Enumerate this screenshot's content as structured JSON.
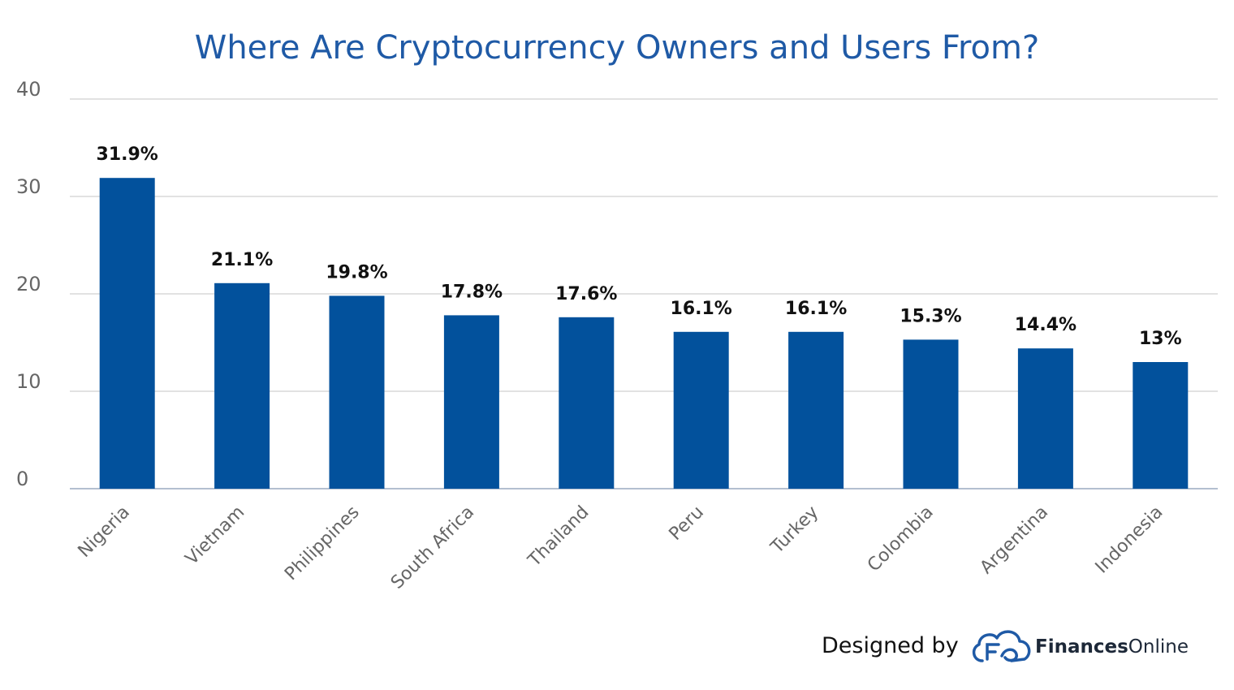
{
  "chart_data": {
    "type": "bar",
    "title": "Where Are Cryptocurrency Owners and Users From?",
    "categories": [
      "Nigeria",
      "Vietnam",
      "Philippines",
      "South Africa",
      "Thailand",
      "Peru",
      "Turkey",
      "Colombia",
      "Argentina",
      "Indonesia"
    ],
    "values": [
      31.9,
      21.1,
      19.8,
      17.8,
      17.6,
      16.1,
      16.1,
      15.3,
      14.4,
      13
    ],
    "data_labels": [
      "31.9%",
      "21.1%",
      "19.8%",
      "17.8%",
      "17.6%",
      "16.1%",
      "16.1%",
      "15.3%",
      "14.4%",
      "13%"
    ],
    "y_ticks": [
      "0",
      "10",
      "20",
      "30",
      "40"
    ],
    "ylim": [
      0,
      40
    ],
    "xlabel": "",
    "ylabel": "",
    "grid": true,
    "bar_color": "#02519c"
  },
  "credit": {
    "designed_by": "Designed by",
    "brand_bold": "Finances",
    "brand_light": "Online",
    "logo_icon": "financesonline-cloud-logo-icon",
    "logo_color": "#1f5aa6"
  }
}
